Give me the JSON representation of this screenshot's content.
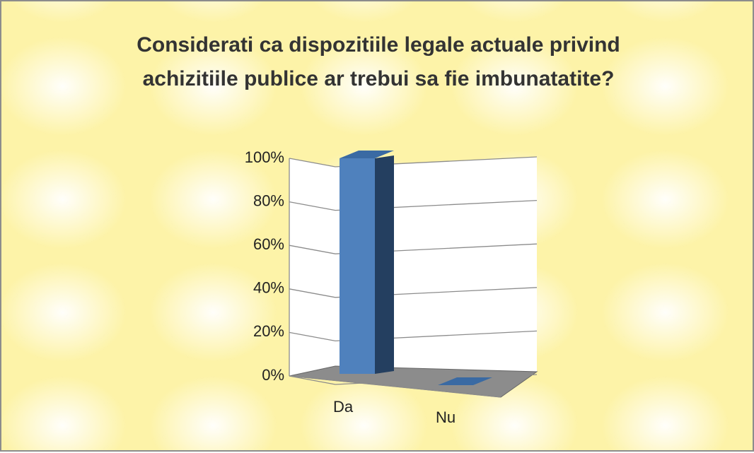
{
  "chart_data": {
    "type": "bar3d",
    "title": "Considerati ca dispozitiile legale actuale privind achizitiile publice ar trebui sa fie imbunatatite?",
    "categories": [
      "Da",
      "Nu"
    ],
    "values": [
      100,
      0
    ],
    "color": "#4f81bd",
    "ylim": [
      0,
      100
    ],
    "yticks": [
      {
        "value": 0,
        "label": "0%"
      },
      {
        "value": 20,
        "label": "20%"
      },
      {
        "value": 40,
        "label": "40%"
      },
      {
        "value": 60,
        "label": "60%"
      },
      {
        "value": 80,
        "label": "80%"
      },
      {
        "value": 100,
        "label": "100%"
      }
    ],
    "grid": true
  }
}
